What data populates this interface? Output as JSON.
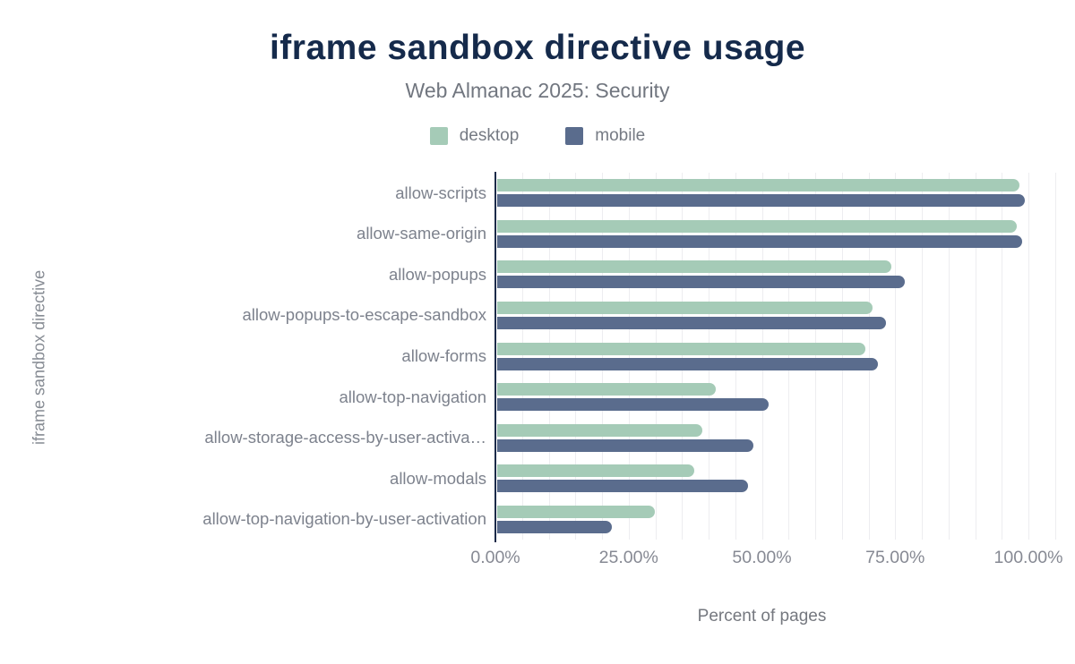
{
  "header": {
    "title": "iframe sandbox directive usage",
    "subtitle": "Web Almanac 2025: Security"
  },
  "axes": {
    "x_title": "Percent of pages",
    "y_title": "iframe sandbox directive"
  },
  "colors": {
    "desktop": "#a5cbb7",
    "mobile": "#5a6c8d",
    "title_navy": "#152a4b",
    "axis_line": "#1c2b49",
    "gridline": "#ededf0"
  },
  "chart_data": {
    "type": "bar",
    "orientation": "horizontal",
    "title": "iframe sandbox directive usage",
    "subtitle": "Web Almanac 2025: Security",
    "xlabel": "Percent of pages",
    "ylabel": "iframe sandbox directive",
    "xlim": [
      0,
      100
    ],
    "xticks": [
      "0.00%",
      "25.00%",
      "50.00%",
      "75.00%",
      "100.00%"
    ],
    "grid": "vertical minor gridlines every 5%",
    "legend_position": "top",
    "categories": [
      "allow-scripts",
      "allow-same-origin",
      "allow-popups",
      "allow-popups-to-escape-sandbox",
      "allow-forms",
      "allow-top-navigation",
      "allow-storage-access-by-user-activa…",
      "allow-modals",
      "allow-top-navigation-by-user-activation"
    ],
    "series": [
      {
        "name": "desktop",
        "color": "#a5cbb7",
        "values": [
          98,
          97.5,
          74,
          70.5,
          69,
          41,
          38.5,
          37,
          29.5
        ]
      },
      {
        "name": "mobile",
        "color": "#5a6c8d",
        "values": [
          99,
          98.5,
          76.5,
          73,
          71.5,
          51,
          48,
          47,
          21.5
        ]
      }
    ]
  }
}
